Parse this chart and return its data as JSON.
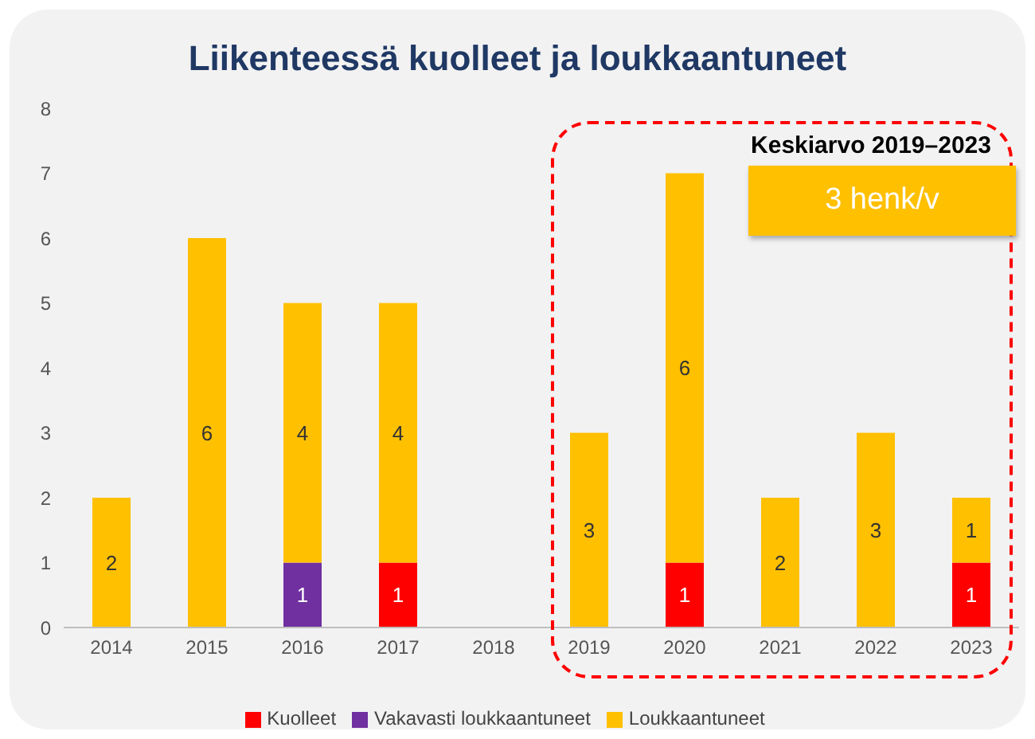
{
  "chart_data": {
    "type": "bar",
    "title": "Liikenteessä kuolleet ja loukkaantuneet",
    "categories": [
      "2014",
      "2015",
      "2016",
      "2017",
      "2018",
      "2019",
      "2020",
      "2021",
      "2022",
      "2023"
    ],
    "stacked": true,
    "series": [
      {
        "name": "Kuolleet",
        "color": "#ff0000",
        "values": [
          null,
          null,
          null,
          1,
          null,
          null,
          1,
          null,
          null,
          1
        ]
      },
      {
        "name": "Vakavasti loukkaantuneet",
        "color": "#7030a0",
        "values": [
          null,
          null,
          1,
          null,
          null,
          null,
          null,
          null,
          null,
          null
        ]
      },
      {
        "name": "Loukkaantuneet",
        "color": "#ffc000",
        "values": [
          2,
          6,
          4,
          4,
          null,
          3,
          6,
          2,
          3,
          1
        ]
      }
    ],
    "ylim": [
      0,
      8
    ],
    "yticks": [
      0,
      1,
      2,
      3,
      4,
      5,
      6,
      7,
      8
    ],
    "grid": false,
    "legend": "bottom",
    "data_labels": true,
    "annotations": [
      "Keskiarvo 2019–2023",
      "3 henk/v"
    ]
  }
}
